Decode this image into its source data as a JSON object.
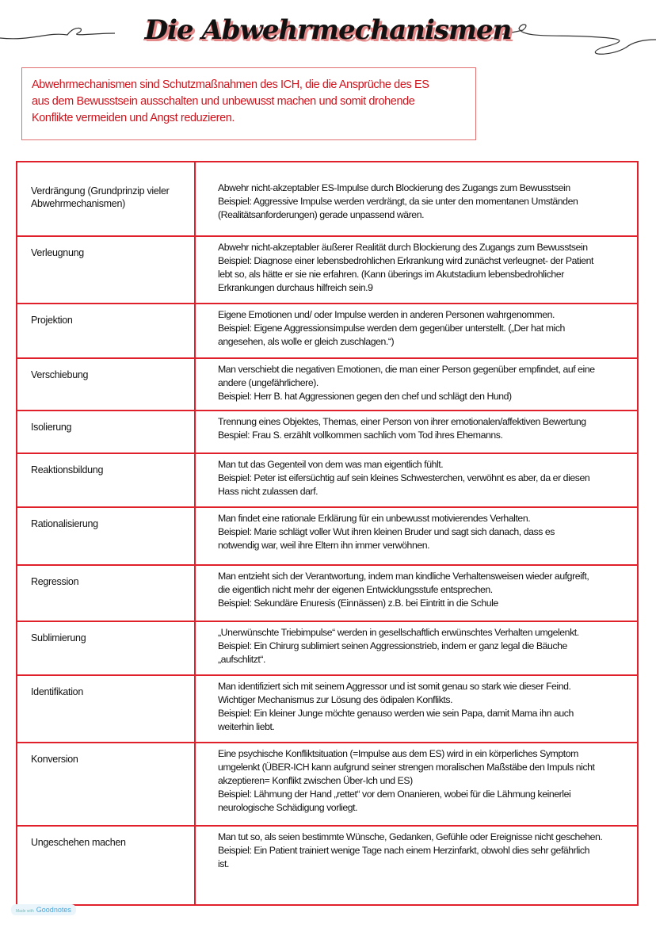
{
  "title": "Die Abwehrmechanismen",
  "intro_lines": [
    "Abwehrmechanismen sind Schutzmaßnahmen des ICH, die die Ansprüche des ES",
    "aus dem Bewusstsein ausschalten und unbewusst machen und somit drohende",
    "Konflikte vermeiden und Angst reduzieren."
  ],
  "colors": {
    "accent": "#e0202a",
    "intro_text": "#d0121b",
    "title_shadow": "#e58a8a"
  },
  "rows": [
    {
      "term": [
        "Verdrängung (Grundprinzip vieler",
        "Abwehrmechanismen)"
      ],
      "desc": [
        "Abwehr nicht-akzeptabler ES-Impulse durch Blockierung des Zugangs zum Bewusstsein",
        "Beispiel: Aggressive Impulse werden verdrängt, da sie unter den momentanen Umständen",
        "(Realitätsanforderungen) gerade unpassend wären."
      ]
    },
    {
      "term": [
        "Verleugnung"
      ],
      "desc": [
        "Abwehr nicht-akzeptabler äußerer Realität durch Blockierung des Zugangs zum Bewusstsein",
        "Beispiel: Diagnose einer lebensbedrohlichen Erkrankung wird zunächst verleugnet- der Patient",
        "lebt so, als hätte er sie nie erfahren. (Kann überings im Akutstadium lebensbedrohlicher",
        "Erkrankungen durchaus hilfreich sein.9"
      ]
    },
    {
      "term": [
        "Projektion"
      ],
      "desc": [
        "Eigene Emotionen und/ oder Impulse werden in anderen Personen wahrgenommen.",
        "Beispiel: Eigene Aggressionsimpulse werden dem gegenüber unterstellt. („Der hat mich",
        "angesehen, als wolle er gleich zuschlagen.“)"
      ]
    },
    {
      "term": [
        "Verschiebung"
      ],
      "desc": [
        "Man verschiebt die negativen Emotionen, die man einer Person gegenüber empfindet, auf eine",
        "andere (ungefährlichere).",
        "Beispiel: Herr B. hat Aggressionen gegen den chef und schlägt den Hund)"
      ]
    },
    {
      "term": [
        "Isolierung"
      ],
      "desc": [
        "Trennung eines Objektes, Themas, einer Person von ihrer emotionalen/affektiven Bewertung",
        "Bespiel: Frau S. erzählt vollkommen sachlich vom Tod ihres Ehemanns."
      ]
    },
    {
      "term": [
        "Reaktionsbildung"
      ],
      "desc": [
        "Man tut das Gegenteil von dem was man eigentlich fühlt.",
        "Beispiel: Peter ist eifersüchtig auf sein kleines Schwesterchen, verwöhnt es aber, da er diesen",
        "Hass nicht zulassen darf."
      ]
    },
    {
      "term": [
        "Rationalisierung"
      ],
      "desc": [
        "Man findet eine rationale Erklärung für ein unbewusst motivierendes Verhalten.",
        "Beispiel: Marie schlägt voller Wut ihren kleinen Bruder und sagt sich danach, dass es",
        "notwendig war, weil ihre Eltern ihn immer verwöhnen."
      ]
    },
    {
      "term": [
        "Regression"
      ],
      "desc": [
        "Man entzieht sich der Verantwortung, indem man kindliche Verhaltensweisen wieder aufgreift,",
        "die eigentlich nicht mehr der eigenen Entwicklungsstufe entsprechen.",
        "Beispiel: Sekundäre Enuresis (Einnässen) z.B. bei Eintritt in die Schule"
      ]
    },
    {
      "term": [
        "Sublimierung"
      ],
      "desc": [
        "„Unerwünschte Triebimpulse“ werden in gesellschaftlich erwünschtes Verhalten umgelenkt.",
        "Beispiel: Ein Chirurg sublimiert seinen Aggressionstrieb, indem er ganz legal die Bäuche",
        "„aufschlitzt“."
      ]
    },
    {
      "term": [
        "Identifikation"
      ],
      "desc": [
        "Man identifiziert sich mit seinem Aggressor und ist somit genau so stark wie dieser Feind.",
        "Wichtiger Mechanismus zur Lösung des ödipalen Konflikts.",
        "Beispiel: Ein kleiner Junge möchte genauso werden wie sein Papa, damit Mama ihn auch",
        "weiterhin liebt."
      ]
    },
    {
      "term": [
        "Konversion"
      ],
      "desc": [
        "Eine psychische Konfliktsituation (=Impulse aus dem ES) wird in ein körperliches Symptom",
        "umgelenkt (ÜBER-ICH kann aufgrund seiner strengen moralischen Maßstäbe den Impuls nicht",
        "akzeptieren= Konflikt zwischen Über-Ich und ES)",
        "Beispiel: Lähmung der Hand „rettet“ vor dem Onanieren, wobei für die Lähmung keinerlei",
        "neurologische Schädigung vorliegt."
      ]
    },
    {
      "term": [
        "Ungeschehen machen"
      ],
      "desc": [
        "Man tut so, als seien bestimmte Wünsche, Gedanken, Gefühle oder Ereignisse nicht geschehen.",
        "Beispiel: Ein Patient trainiert wenige Tage nach einem Herzinfarkt, obwohl dies sehr gefährlich",
        "ist."
      ]
    }
  ],
  "footer": {
    "prefix": "Made with",
    "brand": "Goodnotes"
  }
}
